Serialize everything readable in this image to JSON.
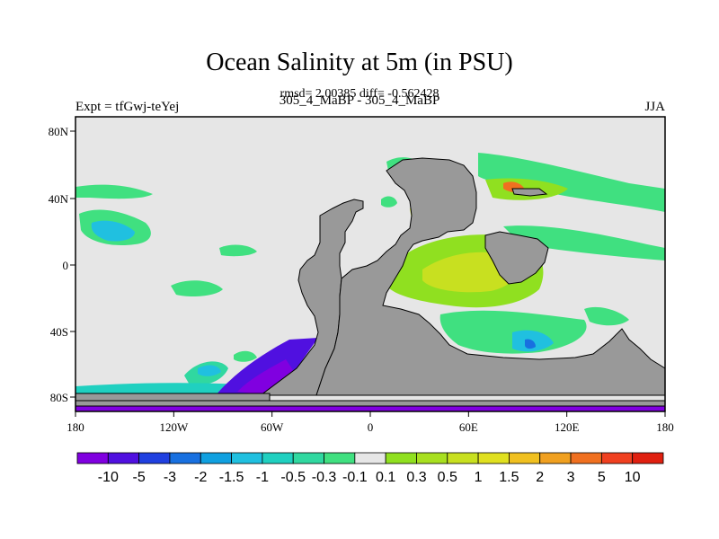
{
  "title": "Ocean Salinity at 5m (in PSU)",
  "subtitle": "rmsd= 2.00385 diff= -0.562428",
  "left_label": "Expt = tfGwj-teYej",
  "center_label": "305_4_MaBP - 305_4_MaBP",
  "right_label": "JJA",
  "map": {
    "lon_range": [
      -180,
      180
    ],
    "lat_range": [
      -90,
      90
    ],
    "x_ticks": [
      "180",
      "120W",
      "60W",
      "0",
      "60E",
      "120E",
      "180"
    ],
    "y_ticks": [
      "80N",
      "40N",
      "0",
      "40S",
      "80S"
    ],
    "colors": {
      "ocean_background": "#e6e6e6",
      "land": "#999999",
      "coastline": "#000000"
    }
  },
  "colorbar": {
    "labels": [
      "-10",
      "-5",
      "-3",
      "-2",
      "-1.5",
      "-1",
      "-0.5",
      "-0.3",
      "-0.1",
      "0.1",
      "0.3",
      "0.5",
      "1",
      "1.5",
      "2",
      "3",
      "5",
      "10"
    ],
    "colors": [
      "#8000e0",
      "#5010e0",
      "#2040e0",
      "#1870e0",
      "#10a0e0",
      "#20c0e0",
      "#20d0c0",
      "#30d8a0",
      "#40e080",
      "#e6e6e6",
      "#90e020",
      "#a8e020",
      "#c8e020",
      "#e0e020",
      "#f0c020",
      "#f0a020",
      "#f07020",
      "#f04020",
      "#e02010"
    ]
  }
}
